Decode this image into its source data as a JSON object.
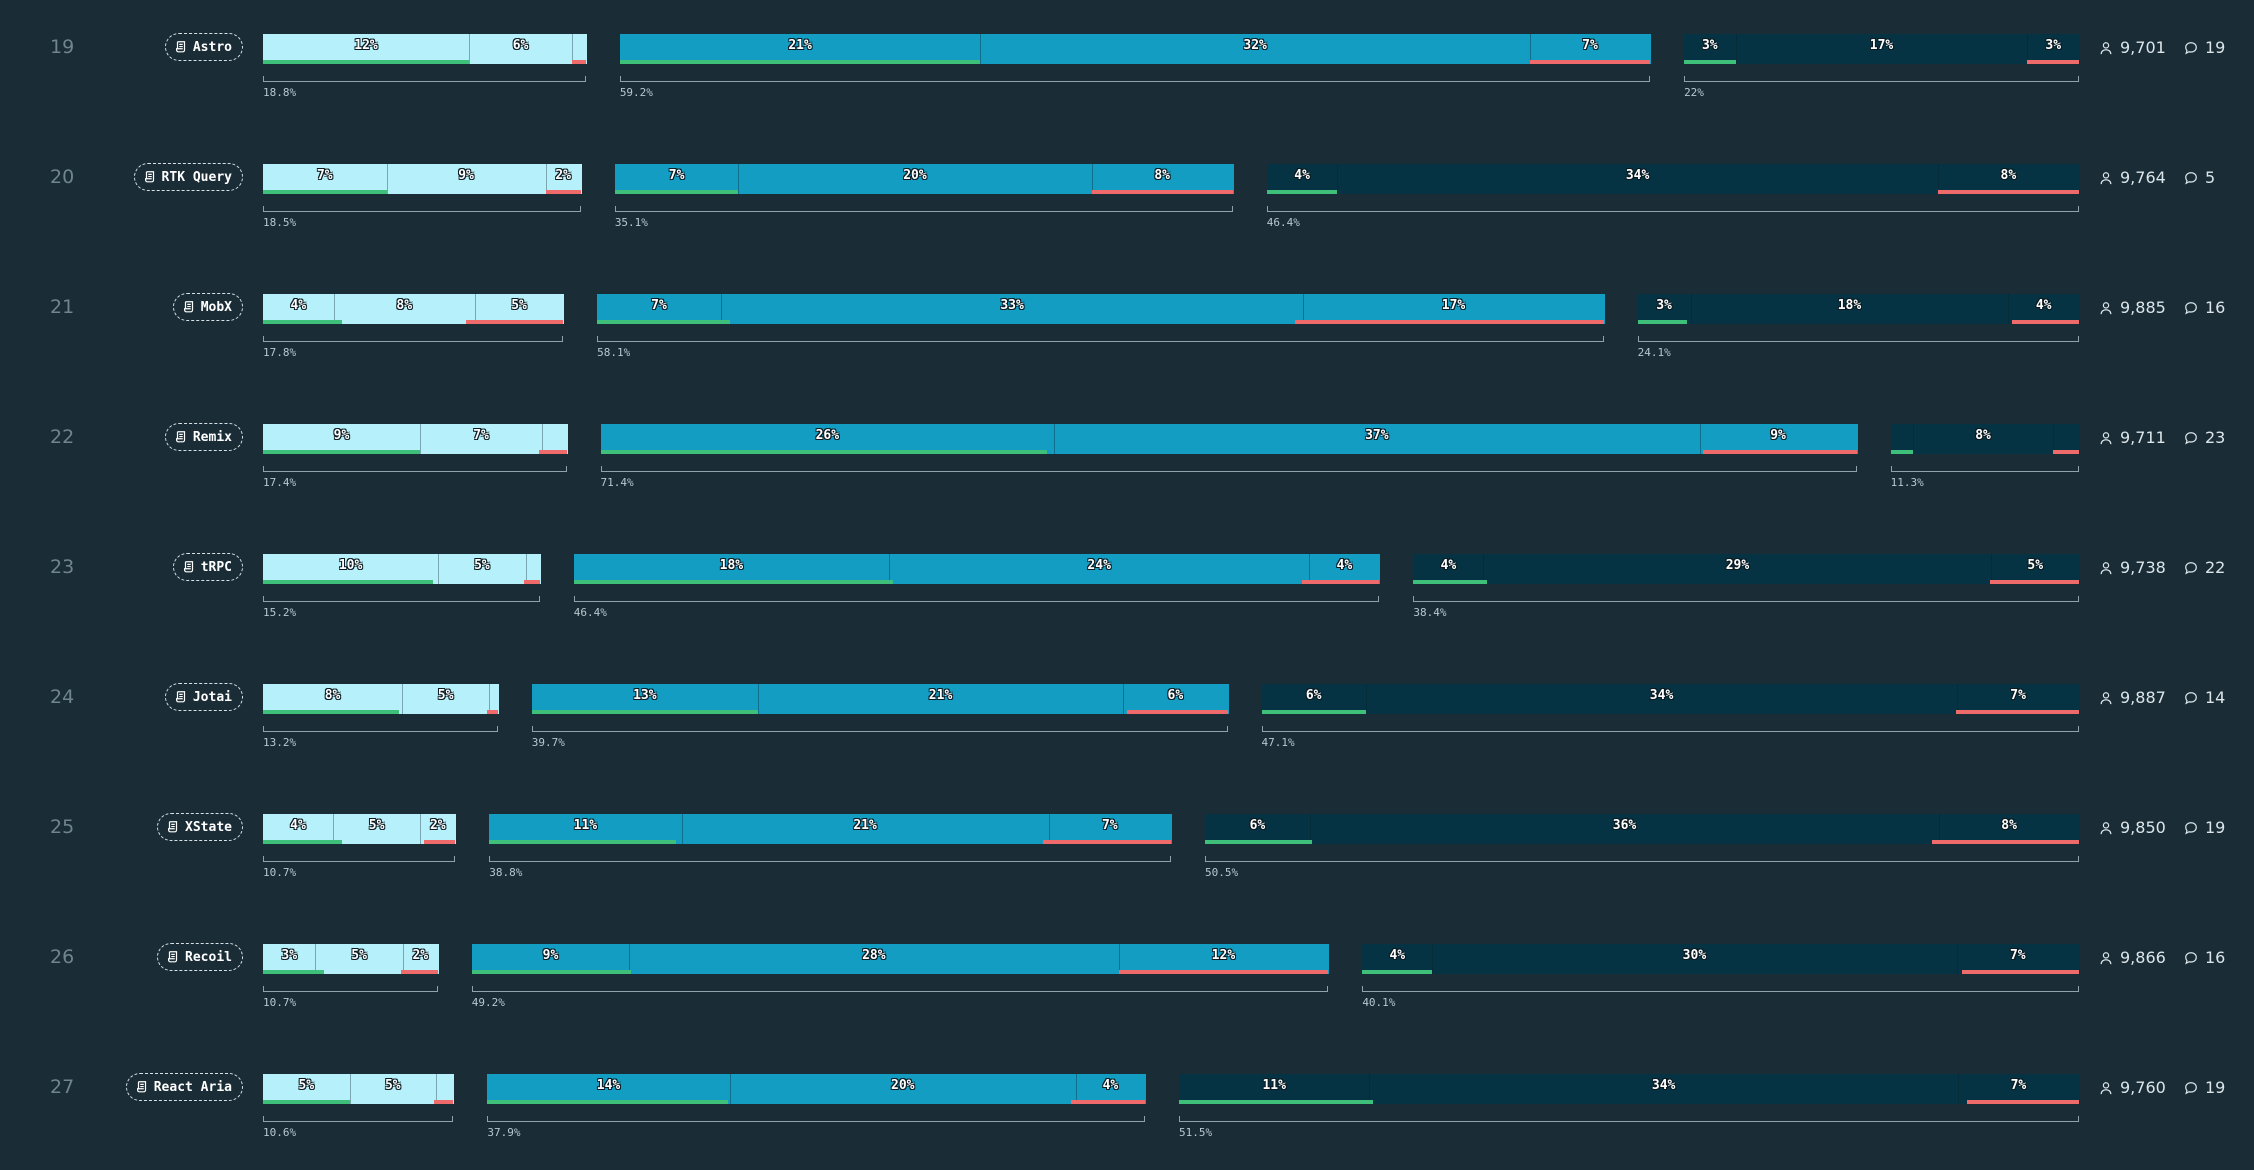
{
  "colors": {
    "background": "#1a2c36",
    "group1": "#b5f0fb",
    "group2": "#139dc3",
    "group3": "#053343",
    "positive": "#3fc07a",
    "negative": "#ef6b6b"
  },
  "icons": {
    "library": "scroll-icon",
    "users": "user-icon",
    "comments": "comment-icon"
  },
  "chart_data": {
    "type": "bar",
    "rows": [
      {
        "rank": "19",
        "name": "Astro",
        "users": "9,701",
        "comments": "19",
        "groups": [
          {
            "total": "18.8%",
            "segments": [
              {
                "value": 12,
                "label": "12%"
              },
              {
                "value": 6,
                "label": "6%"
              },
              {
                "value": 0.8,
                "label": ""
              }
            ],
            "positive": 12,
            "negative": 0.8
          },
          {
            "total": "59.2%",
            "segments": [
              {
                "value": 21,
                "label": "21%"
              },
              {
                "value": 32,
                "label": "32%"
              },
              {
                "value": 7,
                "label": "7%"
              }
            ],
            "positive": 21,
            "negative": 7
          },
          {
            "total": "22%",
            "segments": [
              {
                "value": 3,
                "label": "3%"
              },
              {
                "value": 17,
                "label": "17%"
              },
              {
                "value": 3,
                "label": "3%"
              }
            ],
            "positive": 3,
            "negative": 3
          }
        ]
      },
      {
        "rank": "20",
        "name": "RTK Query",
        "users": "9,764",
        "comments": "5",
        "groups": [
          {
            "total": "18.5%",
            "segments": [
              {
                "value": 7,
                "label": "7%"
              },
              {
                "value": 9,
                "label": "9%"
              },
              {
                "value": 2,
                "label": "2%"
              }
            ],
            "positive": 7,
            "negative": 2
          },
          {
            "total": "35.1%",
            "segments": [
              {
                "value": 7,
                "label": "7%"
              },
              {
                "value": 20,
                "label": "20%"
              },
              {
                "value": 8,
                "label": "8%"
              }
            ],
            "positive": 7,
            "negative": 8
          },
          {
            "total": "46.4%",
            "segments": [
              {
                "value": 4,
                "label": "4%"
              },
              {
                "value": 34,
                "label": "34%"
              },
              {
                "value": 8,
                "label": "8%"
              }
            ],
            "positive": 4,
            "negative": 8
          }
        ]
      },
      {
        "rank": "21",
        "name": "MobX",
        "users": "9,885",
        "comments": "16",
        "groups": [
          {
            "total": "17.8%",
            "segments": [
              {
                "value": 4,
                "label": "4%"
              },
              {
                "value": 8,
                "label": "8%"
              },
              {
                "value": 5,
                "label": "5%"
              }
            ],
            "positive": 4.5,
            "negative": 5.5
          },
          {
            "total": "58.1%",
            "segments": [
              {
                "value": 7,
                "label": "7%"
              },
              {
                "value": 33,
                "label": "33%"
              },
              {
                "value": 17,
                "label": "17%"
              }
            ],
            "positive": 7.5,
            "negative": 17.5
          },
          {
            "total": "24.1%",
            "segments": [
              {
                "value": 3,
                "label": "3%"
              },
              {
                "value": 18,
                "label": "18%"
              },
              {
                "value": 4,
                "label": "4%"
              }
            ],
            "positive": 2.8,
            "negative": 3.8
          }
        ]
      },
      {
        "rank": "22",
        "name": "Remix",
        "users": "9,711",
        "comments": "23",
        "groups": [
          {
            "total": "17.4%",
            "segments": [
              {
                "value": 9,
                "label": "9%"
              },
              {
                "value": 7,
                "label": "7%"
              },
              {
                "value": 1.4,
                "label": ""
              }
            ],
            "positive": 9,
            "negative": 1.6
          },
          {
            "total": "71.4%",
            "segments": [
              {
                "value": 26,
                "label": "26%"
              },
              {
                "value": 37,
                "label": "37%"
              },
              {
                "value": 9,
                "label": "9%"
              }
            ],
            "positive": 25.6,
            "negative": 8.8
          },
          {
            "total": "11.3%",
            "segments": [
              {
                "value": 1.3,
                "label": ""
              },
              {
                "value": 8,
                "label": "8%"
              },
              {
                "value": 1.5,
                "label": ""
              }
            ],
            "positive": 1.3,
            "negative": 1.5
          }
        ]
      },
      {
        "rank": "23",
        "name": "tRPC",
        "users": "9,738",
        "comments": "22",
        "groups": [
          {
            "total": "15.2%",
            "segments": [
              {
                "value": 10,
                "label": "10%"
              },
              {
                "value": 5,
                "label": "5%"
              },
              {
                "value": 0.8,
                "label": ""
              }
            ],
            "positive": 9.7,
            "negative": 0.9
          },
          {
            "total": "46.4%",
            "segments": [
              {
                "value": 18,
                "label": "18%"
              },
              {
                "value": 24,
                "label": "24%"
              },
              {
                "value": 4,
                "label": "4%"
              }
            ],
            "positive": 18.2,
            "negative": 4.4
          },
          {
            "total": "38.4%",
            "segments": [
              {
                "value": 4,
                "label": "4%"
              },
              {
                "value": 29,
                "label": "29%"
              },
              {
                "value": 5,
                "label": "5%"
              }
            ],
            "positive": 4.2,
            "negative": 5.1
          }
        ]
      },
      {
        "rank": "24",
        "name": "Jotai",
        "users": "9,887",
        "comments": "14",
        "groups": [
          {
            "total": "13.2%",
            "segments": [
              {
                "value": 8,
                "label": "8%"
              },
              {
                "value": 5,
                "label": "5%"
              },
              {
                "value": 0.5,
                "label": ""
              }
            ],
            "positive": 7.8,
            "negative": 0.6
          },
          {
            "total": "39.7%",
            "segments": [
              {
                "value": 13,
                "label": "13%"
              },
              {
                "value": 21,
                "label": "21%"
              },
              {
                "value": 6,
                "label": "6%"
              }
            ],
            "positive": 13,
            "negative": 5.8
          },
          {
            "total": "47.1%",
            "segments": [
              {
                "value": 6,
                "label": "6%"
              },
              {
                "value": 34,
                "label": "34%"
              },
              {
                "value": 7,
                "label": "7%"
              }
            ],
            "positive": 6,
            "negative": 7.1
          }
        ]
      },
      {
        "rank": "25",
        "name": "XState",
        "users": "9,850",
        "comments": "19",
        "groups": [
          {
            "total": "10.7%",
            "segments": [
              {
                "value": 4,
                "label": "4%"
              },
              {
                "value": 5,
                "label": "5%"
              },
              {
                "value": 2,
                "label": "2%"
              }
            ],
            "positive": 4.5,
            "negative": 1.8
          },
          {
            "total": "38.8%",
            "segments": [
              {
                "value": 11,
                "label": "11%"
              },
              {
                "value": 21,
                "label": "21%"
              },
              {
                "value": 7,
                "label": "7%"
              }
            ],
            "positive": 10.7,
            "negative": 7.3
          },
          {
            "total": "50.5%",
            "segments": [
              {
                "value": 6,
                "label": "6%"
              },
              {
                "value": 36,
                "label": "36%"
              },
              {
                "value": 8,
                "label": "8%"
              }
            ],
            "positive": 6.1,
            "negative": 8.4
          }
        ]
      },
      {
        "rank": "26",
        "name": "Recoil",
        "users": "9,866",
        "comments": "16",
        "groups": [
          {
            "total": "10.7%",
            "segments": [
              {
                "value": 3,
                "label": "3%"
              },
              {
                "value": 5,
                "label": "5%"
              },
              {
                "value": 2,
                "label": "2%"
              }
            ],
            "positive": 3.5,
            "negative": 2.1
          },
          {
            "total": "49.2%",
            "segments": [
              {
                "value": 9,
                "label": "9%"
              },
              {
                "value": 28,
                "label": "28%"
              },
              {
                "value": 12,
                "label": "12%"
              }
            ],
            "positive": 9.1,
            "negative": 12
          },
          {
            "total": "40.1%",
            "segments": [
              {
                "value": 4,
                "label": "4%"
              },
              {
                "value": 30,
                "label": "30%"
              },
              {
                "value": 7,
                "label": "7%"
              }
            ],
            "positive": 4,
            "negative": 6.7
          }
        ]
      },
      {
        "rank": "27",
        "name": "React Aria",
        "users": "9,760",
        "comments": "19",
        "groups": [
          {
            "total": "10.6%",
            "segments": [
              {
                "value": 5,
                "label": "5%"
              },
              {
                "value": 5,
                "label": "5%"
              },
              {
                "value": 1,
                "label": ""
              }
            ],
            "positive": 5,
            "negative": 1.1
          },
          {
            "total": "37.9%",
            "segments": [
              {
                "value": 14,
                "label": "14%"
              },
              {
                "value": 20,
                "label": "20%"
              },
              {
                "value": 4,
                "label": "4%"
              }
            ],
            "positive": 13.9,
            "negative": 4.3
          },
          {
            "total": "51.5%",
            "segments": [
              {
                "value": 11,
                "label": "11%"
              },
              {
                "value": 34,
                "label": "34%"
              },
              {
                "value": 7,
                "label": "7%"
              }
            ],
            "positive": 11.2,
            "negative": 6.5
          }
        ]
      }
    ]
  }
}
